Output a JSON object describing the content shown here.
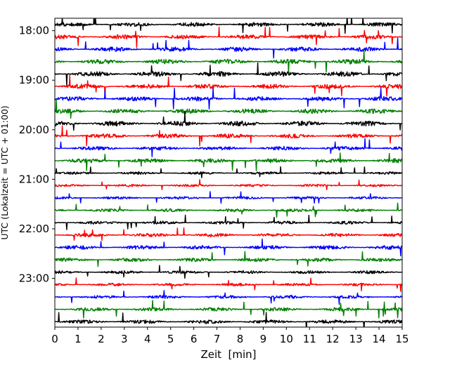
{
  "chart_data": {
    "type": "line",
    "title": "",
    "xlabel": "Zeit  [min]",
    "ylabel": "UTC (Lokalzeit = UTC + 01:00)",
    "xlim": [
      0,
      15
    ],
    "x_ticks": [
      "0",
      "1",
      "2",
      "3",
      "4",
      "5",
      "6",
      "7",
      "8",
      "9",
      "10",
      "11",
      "12",
      "13",
      "14",
      "15"
    ],
    "y_ticks": [
      "18:00",
      "19:00",
      "20:00",
      "21:00",
      "22:00",
      "23:00"
    ],
    "y_range": [
      "17:45",
      "23:59"
    ],
    "grid": false,
    "legend": "none",
    "trace_interval_min": 15,
    "trace_colors": [
      "#000000",
      "#ff0000",
      "#0000ff",
      "#008000"
    ],
    "traces": [
      {
        "start": "17:45",
        "amplitude": 2.5
      },
      {
        "start": "18:00",
        "amplitude": 2.6
      },
      {
        "start": "18:15",
        "amplitude": 2.7
      },
      {
        "start": "18:30",
        "amplitude": 2.9
      },
      {
        "start": "18:45",
        "amplitude": 3.0
      },
      {
        "start": "19:00",
        "amplitude": 2.7
      },
      {
        "start": "19:15",
        "amplitude": 2.6
      },
      {
        "start": "19:30",
        "amplitude": 2.8
      },
      {
        "start": "19:45",
        "amplitude": 3.0
      },
      {
        "start": "20:00",
        "amplitude": 2.6
      },
      {
        "start": "20:15",
        "amplitude": 2.4
      },
      {
        "start": "20:30",
        "amplitude": 2.6
      },
      {
        "start": "20:45",
        "amplitude": 1.6
      },
      {
        "start": "21:00",
        "amplitude": 1.5
      },
      {
        "start": "21:15",
        "amplitude": 1.6
      },
      {
        "start": "21:30",
        "amplitude": 1.8
      },
      {
        "start": "21:45",
        "amplitude": 1.9
      },
      {
        "start": "22:00",
        "amplitude": 2.2
      },
      {
        "start": "22:15",
        "amplitude": 2.4
      },
      {
        "start": "22:30",
        "amplitude": 2.2
      },
      {
        "start": "22:45",
        "amplitude": 1.8
      },
      {
        "start": "23:00",
        "amplitude": 1.7
      },
      {
        "start": "23:15",
        "amplitude": 1.9
      },
      {
        "start": "23:30",
        "amplitude": 2.2
      },
      {
        "start": "23:45",
        "amplitude": 2.3
      }
    ]
  }
}
